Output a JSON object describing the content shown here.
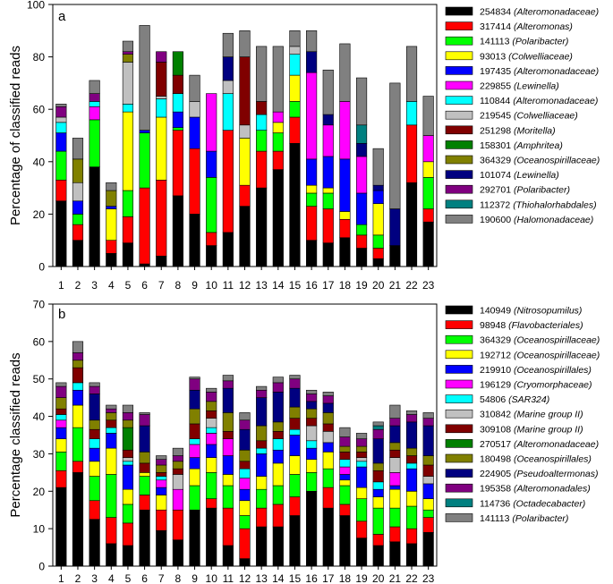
{
  "chart_data": [
    {
      "type": "bar",
      "stacked": true,
      "panel_label": "a",
      "ylabel": "Percentage of classified reads",
      "ylim": [
        0,
        100
      ],
      "yticks": [
        0,
        20,
        40,
        60,
        80,
        100
      ],
      "categories": [
        "1",
        "2",
        "3",
        "4",
        "5",
        "6",
        "7",
        "8",
        "9",
        "10",
        "11",
        "12",
        "13",
        "14",
        "15",
        "16",
        "17",
        "18",
        "19",
        "20",
        "21",
        "22",
        "23"
      ],
      "legend_position": "right",
      "series": [
        {
          "id": "254834",
          "taxon": "(Alteromonadaceae)",
          "color": "#000000",
          "values": [
            25,
            10,
            38,
            5,
            9,
            1,
            4,
            27,
            20,
            8,
            13,
            23,
            30,
            37,
            47,
            10,
            9,
            11,
            7,
            3,
            8,
            32,
            17
          ]
        },
        {
          "id": "317414",
          "taxon": "(Alteromonas)",
          "color": "#ff0000",
          "values": [
            8,
            6,
            0,
            5,
            10,
            29,
            29,
            25,
            25,
            5,
            39,
            8,
            14,
            7,
            10,
            13,
            13,
            7,
            5,
            4,
            0,
            22,
            5
          ]
        },
        {
          "id": "141113",
          "taxon": "(Polaribacter)",
          "color": "#00ff00",
          "values": [
            11,
            4,
            18,
            0,
            10,
            21,
            0,
            1,
            0,
            21,
            0,
            0,
            8,
            7,
            6,
            5,
            6,
            0,
            4,
            5,
            0,
            0,
            12
          ]
        },
        {
          "id": "93013",
          "taxon": "(Colwelliaceae)",
          "color": "#ffff00",
          "values": [
            0,
            0,
            0,
            12,
            30,
            0,
            24,
            0,
            0,
            0,
            0,
            18,
            0,
            4,
            10,
            3,
            2,
            3,
            0,
            12,
            0,
            0,
            6
          ]
        },
        {
          "id": "197435",
          "taxon": "(Alteromonadaceae)",
          "color": "#0000ff",
          "values": [
            7,
            5,
            0,
            1,
            0,
            1,
            0,
            6,
            12,
            10,
            0,
            0,
            0,
            0,
            0,
            10,
            12,
            20,
            12,
            5,
            0,
            0,
            0
          ]
        },
        {
          "id": "229855",
          "taxon": "(Lewinella)",
          "color": "#ff00ff",
          "values": [
            0,
            0,
            5,
            0,
            0,
            0,
            0,
            0,
            0,
            22,
            0,
            0,
            0,
            4,
            0,
            33,
            12,
            22,
            14,
            0,
            0,
            0,
            10
          ]
        },
        {
          "id": "110844",
          "taxon": "(Alteromonadaceae)",
          "color": "#00ffff",
          "values": [
            4,
            0,
            2,
            0,
            3,
            0,
            7,
            7,
            0,
            0,
            14,
            0,
            6,
            0,
            8,
            0,
            0,
            0,
            0,
            0,
            0,
            9,
            0
          ]
        },
        {
          "id": "219545",
          "taxon": "(Colwelliaceae)",
          "color": "#c0c0c0",
          "values": [
            2,
            7,
            0,
            0,
            16,
            0,
            1,
            0,
            6,
            0,
            5,
            5,
            0,
            0,
            3,
            0,
            0,
            0,
            0,
            0,
            0,
            0,
            0
          ]
        },
        {
          "id": "251298",
          "taxon": "(Moritella)",
          "color": "#800000",
          "values": [
            0,
            0,
            0,
            0,
            0,
            0,
            13,
            7,
            0,
            0,
            0,
            26,
            5,
            0,
            0,
            0,
            0,
            0,
            0,
            0,
            0,
            0,
            0
          ]
        },
        {
          "id": "158301",
          "taxon": "(Amphritea)",
          "color": "#008000",
          "values": [
            0,
            0,
            0,
            0,
            0,
            0,
            0,
            9,
            0,
            0,
            0,
            0,
            0,
            0,
            0,
            0,
            0,
            0,
            0,
            0,
            0,
            0,
            0
          ]
        },
        {
          "id": "364329",
          "taxon": "(Oceanospirillaceae)",
          "color": "#808000",
          "values": [
            0,
            9,
            0,
            6,
            3,
            0,
            0,
            0,
            0,
            0,
            0,
            0,
            0,
            0,
            0,
            0,
            0,
            0,
            0,
            0,
            0,
            0,
            0
          ]
        },
        {
          "id": "101074",
          "taxon": "(Lewinella)",
          "color": "#000080",
          "values": [
            0,
            0,
            0,
            0,
            0,
            0,
            0,
            0,
            0,
            0,
            9,
            0,
            0,
            0,
            0,
            8,
            4,
            0,
            5,
            2,
            14,
            0,
            0
          ]
        },
        {
          "id": "292701",
          "taxon": "(Polaribacter)",
          "color": "#800080",
          "values": [
            4,
            0,
            3,
            0,
            1,
            0,
            4,
            0,
            0,
            0,
            0,
            0,
            0,
            0,
            0,
            0,
            0,
            0,
            0,
            0,
            0,
            0,
            0
          ]
        },
        {
          "id": "112372",
          "taxon": "(Thiohalorhabdales)",
          "color": "#008080",
          "values": [
            0,
            0,
            0,
            0,
            0,
            0,
            0,
            0,
            0,
            0,
            0,
            0,
            0,
            0,
            0,
            0,
            0,
            0,
            7,
            0,
            0,
            0,
            0
          ]
        },
        {
          "id": "190600",
          "taxon": "(Halomonadaceae)",
          "color": "#808080",
          "values": [
            1,
            8,
            5,
            3,
            4,
            40,
            0,
            0,
            10,
            0,
            9,
            10,
            21,
            25,
            6,
            8,
            17,
            22,
            18,
            14,
            48,
            21,
            15
          ]
        }
      ]
    },
    {
      "type": "bar",
      "stacked": true,
      "panel_label": "b",
      "ylabel": "Percentage classified reads",
      "ylim": [
        0,
        70
      ],
      "yticks": [
        0,
        10,
        20,
        30,
        40,
        50,
        60,
        70
      ],
      "categories": [
        "1",
        "2",
        "3",
        "4",
        "5",
        "6",
        "7",
        "8",
        "9",
        "10",
        "11",
        "12",
        "13",
        "14",
        "15",
        "16",
        "17",
        "18",
        "19",
        "20",
        "21",
        "22",
        "23"
      ],
      "legend_position": "right",
      "series": [
        {
          "id": "140949",
          "taxon": "(Nitrosopumilus)",
          "color": "#000000",
          "values": [
            21,
            25,
            12.5,
            6,
            5.5,
            15,
            9.5,
            7,
            15,
            15.5,
            5.5,
            2,
            10.5,
            10.5,
            13.5,
            20,
            15.5,
            13.5,
            7.5,
            5.5,
            6.5,
            6,
            9
          ]
        },
        {
          "id": "98948",
          "taxon": "(Flavobacteriales)",
          "color": "#ff0000",
          "values": [
            4.5,
            3,
            5,
            7,
            6,
            4,
            5.5,
            8,
            0,
            2.5,
            10,
            8,
            5,
            6,
            5,
            0,
            5.5,
            3,
            4.5,
            3,
            4,
            4,
            4
          ]
        },
        {
          "id": "364329",
          "taxon": "(Oceanospirillaceae)",
          "color": "#00ff00",
          "values": [
            5,
            9,
            6.5,
            11.5,
            5,
            5,
            0,
            0,
            6.5,
            7,
            6,
            3.5,
            5,
            5,
            6,
            5,
            5,
            5,
            6,
            7,
            5,
            6,
            2
          ]
        },
        {
          "id": "192712",
          "taxon": "(Oceanospirillaceae)",
          "color": "#ffff00",
          "values": [
            3.5,
            6,
            4,
            7,
            4,
            1,
            4,
            0,
            4.5,
            4,
            3,
            4,
            3.5,
            6,
            5,
            3.5,
            4.5,
            1.5,
            3,
            3,
            5,
            4,
            3
          ]
        },
        {
          "id": "219910",
          "taxon": "(Oceanospirillales)",
          "color": "#0000ff",
          "values": [
            3,
            4,
            3.5,
            4,
            6.5,
            0,
            2,
            0,
            3,
            3.5,
            5,
            3,
            6,
            3.5,
            5.5,
            3,
            2.5,
            1.5,
            5.5,
            2,
            1,
            6,
            4
          ]
        },
        {
          "id": "196129",
          "taxon": "(Cryomorphaceae)",
          "color": "#ff00ff",
          "values": [
            2,
            0,
            0,
            0,
            0,
            0,
            2,
            5.5,
            3.5,
            3,
            4.5,
            3,
            0,
            0,
            0,
            0,
            0,
            2,
            0,
            0,
            3.5,
            0,
            0
          ]
        },
        {
          "id": "54806",
          "taxon": "(SAR324)",
          "color": "#00ffff",
          "values": [
            1.5,
            2,
            2.5,
            1.5,
            1,
            0,
            1,
            0,
            1.5,
            1.5,
            0,
            2.5,
            1.5,
            3,
            1.5,
            2,
            0,
            2,
            1.5,
            2,
            0,
            1.5,
            0
          ]
        },
        {
          "id": "310842",
          "taxon": "(Marine group II)",
          "color": "#c0c0c0",
          "values": [
            0,
            0,
            0,
            0,
            1,
            0,
            0,
            4,
            0,
            2.5,
            0,
            0,
            0,
            0,
            0,
            4,
            3,
            0,
            1,
            0,
            4,
            0,
            2
          ]
        },
        {
          "id": "309108",
          "taxon": "(Marine group II)",
          "color": "#800000",
          "values": [
            1.5,
            4,
            2.5,
            2,
            2,
            2.5,
            1,
            1.5,
            4,
            2,
            2,
            2,
            2,
            2,
            3,
            2,
            2,
            2,
            1.5,
            3,
            2,
            2,
            3
          ]
        },
        {
          "id": "270517",
          "taxon": "(Alteromonadaceae)",
          "color": "#008000",
          "values": [
            0,
            0,
            0,
            0,
            6,
            0,
            0,
            0,
            0,
            0,
            0,
            0,
            0,
            0,
            0,
            0,
            0,
            0,
            0,
            0,
            0,
            0,
            0
          ]
        },
        {
          "id": "180498",
          "taxon": "(Oceanospirillales)",
          "color": "#808000",
          "values": [
            3,
            2,
            2.5,
            2,
            2,
            3,
            2,
            2,
            4,
            2.5,
            5,
            3,
            4,
            2.5,
            3,
            2.5,
            3,
            1.5,
            1.5,
            2,
            2,
            2,
            2.5
          ]
        },
        {
          "id": "224905",
          "taxon": "(Pseudoaltermonas)",
          "color": "#000080",
          "values": [
            0,
            0,
            7,
            0,
            0,
            7,
            0,
            0,
            5,
            0,
            6.5,
            5.5,
            7.5,
            8,
            5,
            2,
            2.5,
            0,
            0,
            6.5,
            4.5,
            7,
            8
          ]
        },
        {
          "id": "195358",
          "taxon": "(Alteromonadales)",
          "color": "#800080",
          "values": [
            3,
            2,
            2,
            1,
            2,
            3,
            1.5,
            1.5,
            3,
            2.5,
            2,
            2.5,
            2,
            2.5,
            2.5,
            2,
            2,
            2.5,
            2,
            2.5,
            2,
            2,
            2
          ]
        },
        {
          "id": "114736",
          "taxon": "(Octadecabacter)",
          "color": "#008080",
          "values": [
            0,
            0,
            0,
            0,
            0,
            0,
            0,
            0,
            0,
            0,
            0,
            0,
            0,
            0,
            0,
            0,
            0,
            0,
            0,
            1,
            0,
            0,
            0
          ]
        },
        {
          "id": "141113",
          "taxon": "(Polaribacter)",
          "color": "#808080",
          "values": [
            1,
            3,
            1,
            1,
            2,
            0.5,
            1,
            2,
            0.5,
            1,
            1.5,
            2,
            1,
            1.5,
            1,
            1,
            1,
            2.5,
            1.5,
            1,
            3.5,
            1,
            1.5
          ]
        }
      ]
    }
  ]
}
